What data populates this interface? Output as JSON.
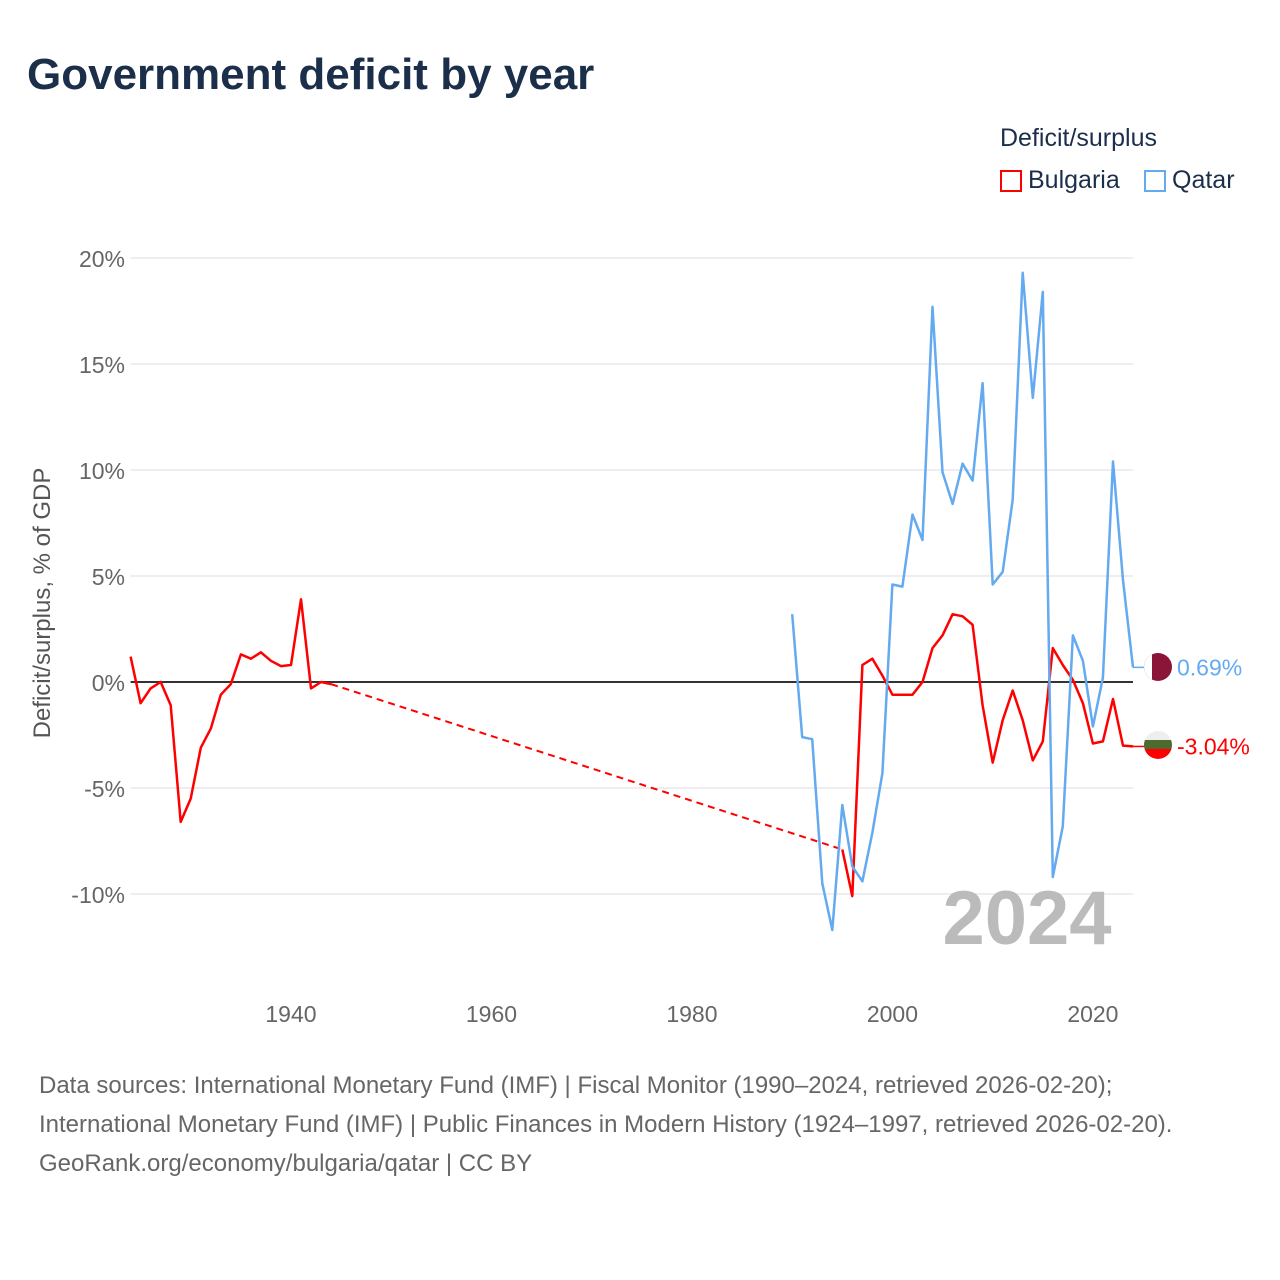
{
  "title": "Government deficit by year",
  "legend": {
    "title": "Deficit/surplus",
    "items": [
      {
        "label": "Bulgaria",
        "color": "#ff0000"
      },
      {
        "label": "Qatar",
        "color": "#64aaf0"
      }
    ]
  },
  "chart_data": {
    "type": "line",
    "title": "Government deficit by year",
    "xlabel": "",
    "ylabel": "Deficit/surplus, % of GDP",
    "xlim": [
      1924,
      2024
    ],
    "ylim": [
      -13,
      20
    ],
    "x_ticks": [
      1940,
      1960,
      1980,
      2000,
      2020
    ],
    "y_ticks": [
      -10,
      -5,
      0,
      5,
      10,
      15,
      20
    ],
    "y_tick_labels": [
      "-10%",
      "-5%",
      "0%",
      "5%",
      "10%",
      "15%",
      "20%"
    ],
    "year_watermark": "2024",
    "series": [
      {
        "name": "Bulgaria",
        "color": "#ff0000",
        "end_label": "-3.04%",
        "gap": [
          1944,
          1995
        ],
        "x": [
          1924,
          1925,
          1926,
          1927,
          1928,
          1929,
          1930,
          1931,
          1932,
          1933,
          1934,
          1935,
          1936,
          1937,
          1938,
          1939,
          1940,
          1941,
          1942,
          1943,
          1944,
          1995,
          1996,
          1997,
          1998,
          1999,
          2000,
          2001,
          2002,
          2003,
          2004,
          2005,
          2006,
          2007,
          2008,
          2009,
          2010,
          2011,
          2012,
          2013,
          2014,
          2015,
          2016,
          2017,
          2018,
          2019,
          2020,
          2021,
          2022,
          2023,
          2024
        ],
        "y": [
          1.2,
          -1.0,
          -0.3,
          0.0,
          -1.1,
          -6.6,
          -5.5,
          -3.1,
          -2.2,
          -0.6,
          -0.1,
          1.3,
          1.1,
          1.4,
          1.0,
          0.75,
          0.8,
          3.9,
          -0.3,
          0.0,
          -0.1,
          -7.9,
          -10.1,
          0.8,
          1.1,
          0.3,
          -0.6,
          -0.6,
          -0.6,
          0.0,
          1.6,
          2.2,
          3.2,
          3.1,
          2.7,
          -1.1,
          -3.8,
          -1.8,
          -0.4,
          -1.8,
          -3.7,
          -2.8,
          1.6,
          0.8,
          0.1,
          -1.0,
          -2.9,
          -2.8,
          -0.8,
          -3.0,
          -3.04
        ]
      },
      {
        "name": "Qatar",
        "color": "#64aaf0",
        "end_label": "0.69%",
        "x": [
          1990,
          1991,
          1992,
          1993,
          1994,
          1995,
          1996,
          1997,
          1998,
          1999,
          2000,
          2001,
          2002,
          2003,
          2004,
          2005,
          2006,
          2007,
          2008,
          2009,
          2010,
          2011,
          2012,
          2013,
          2014,
          2015,
          2016,
          2017,
          2018,
          2019,
          2020,
          2021,
          2022,
          2023,
          2024
        ],
        "y": [
          3.2,
          -2.6,
          -2.7,
          -9.5,
          -11.7,
          -5.8,
          -8.7,
          -9.4,
          -7.1,
          -4.3,
          4.6,
          4.5,
          7.9,
          6.7,
          17.7,
          9.9,
          8.4,
          10.3,
          9.5,
          14.1,
          4.6,
          5.2,
          8.6,
          19.3,
          13.4,
          18.4,
          -9.2,
          -6.8,
          2.2,
          1.0,
          -2.1,
          0.2,
          10.4,
          4.8,
          0.69
        ]
      }
    ]
  },
  "footer": {
    "sources": "Data sources: International Monetary Fund (IMF) | Fiscal Monitor (1990–2024, retrieved 2026-02-20); International Monetary Fund (IMF) | Public Finances in Modern History (1924–1997, retrieved 2026-02-20).",
    "credit": "GeoRank.org/economy/bulgaria/qatar | CC BY"
  }
}
